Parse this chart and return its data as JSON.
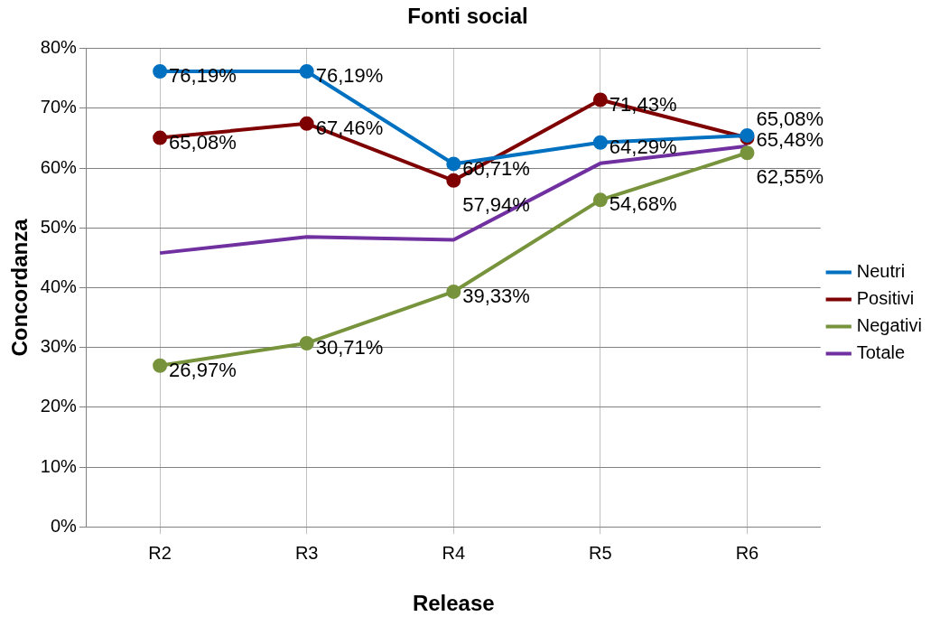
{
  "chart_data": {
    "type": "line",
    "title": "Fonti social",
    "xlabel": "Release",
    "ylabel": "Concordanza",
    "categories": [
      "R2",
      "R3",
      "R4",
      "R5",
      "R6"
    ],
    "series": [
      {
        "name": "Neutri",
        "color": "#0070c0",
        "marker": "circle",
        "values": [
          76.19,
          76.19,
          60.71,
          64.29,
          65.48
        ],
        "value_labels": [
          "76,19%",
          "76,19%",
          "60,71%",
          "64,29%",
          "65,48%"
        ]
      },
      {
        "name": "Positivi",
        "color": "#7f0000",
        "marker": "circle",
        "values": [
          65.08,
          67.46,
          57.94,
          71.43,
          65.08
        ],
        "value_labels": [
          "65,08%",
          "67,46%",
          "57,94%",
          "71,43%",
          "65,08%"
        ]
      },
      {
        "name": "Negativi",
        "color": "#77933c",
        "marker": "circle",
        "values": [
          26.97,
          30.71,
          39.33,
          54.68,
          62.55
        ],
        "value_labels": [
          "26,97%",
          "30,71%",
          "39,33%",
          "54,68%",
          "62,55%"
        ]
      },
      {
        "name": "Totale",
        "color": "#7030a0",
        "marker": "none",
        "values": [
          45.8,
          48.5,
          48.0,
          60.8,
          63.7
        ]
      }
    ],
    "ylim": [
      0,
      80
    ],
    "yticks": [
      {
        "value": 0,
        "label": "0%"
      },
      {
        "value": 10,
        "label": "10%"
      },
      {
        "value": 20,
        "label": "20%"
      },
      {
        "value": 30,
        "label": "30%"
      },
      {
        "value": 40,
        "label": "40%"
      },
      {
        "value": 50,
        "label": "50%"
      },
      {
        "value": 60,
        "label": "60%"
      },
      {
        "value": 70,
        "label": "70%"
      },
      {
        "value": 80,
        "label": "80%"
      }
    ],
    "grid": true,
    "legend": "right",
    "line_style": "solid"
  }
}
